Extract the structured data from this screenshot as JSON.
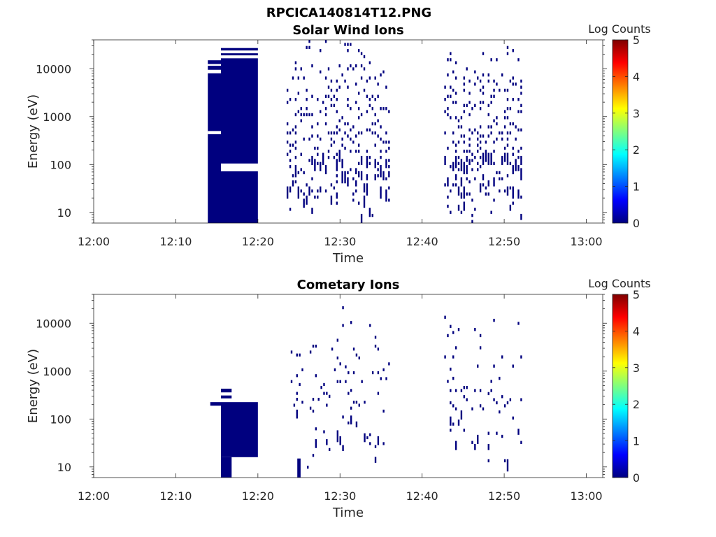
{
  "figure_title": "RPCICA140814T12.PNG",
  "colormap": [
    "#00007f",
    "#0000ff",
    "#007fff",
    "#00ffff",
    "#7fff7f",
    "#ffff00",
    "#ff7f00",
    "#ff0000",
    "#7f0000"
  ],
  "spectrogram_color": "#00007f",
  "chart_data": [
    {
      "type": "heatmap",
      "title": "Solar Wind Ions",
      "xlabel": "Time",
      "ylabel": "Energy (eV)",
      "xlim": [
        "12:00",
        "13:02"
      ],
      "ylim": [
        6,
        40000
      ],
      "yscale": "log",
      "x_ticks": [
        "12:00",
        "12:10",
        "12:20",
        "12:30",
        "12:40",
        "12:50",
        "13:00"
      ],
      "y_ticks": [
        10,
        100,
        1000,
        10000
      ],
      "colorbar": {
        "label": "Log Counts",
        "ticks": [
          0,
          1,
          2,
          3,
          4,
          5
        ],
        "range": [
          0,
          5
        ]
      },
      "blocks": [
        {
          "t0": 13.9,
          "t1": 15.5,
          "e0": 6,
          "e1": 8000
        },
        {
          "t0": 13.9,
          "t1": 15.5,
          "e0": 9500,
          "e1": 11500
        },
        {
          "t0": 13.9,
          "t1": 15.5,
          "e0": 12500,
          "e1": 15000
        },
        {
          "t0": 15.5,
          "t1": 20.0,
          "e0": 6,
          "e1": 72
        },
        {
          "t0": 15.5,
          "t1": 20.0,
          "e0": 105,
          "e1": 16500
        },
        {
          "t0": 15.5,
          "t1": 20.0,
          "e0": 19000,
          "e1": 21000
        },
        {
          "t0": 15.5,
          "t1": 20.0,
          "e0": 24000,
          "e1": 27000
        }
      ],
      "gaps": [
        {
          "t0": 13.9,
          "t1": 15.5,
          "e0": 430,
          "e1": 500
        }
      ],
      "scatter_bursts": [
        {
          "t0": 23.5,
          "t1": 36.2,
          "e_min": 6,
          "e_max": 40000,
          "seed": 11,
          "density": 0.42
        },
        {
          "t0": 42.7,
          "t1": 52.3,
          "e_min": 6,
          "e_max": 40000,
          "seed": 23,
          "density": 0.44
        }
      ]
    },
    {
      "type": "heatmap",
      "title": "Cometary Ions",
      "xlabel": "Time",
      "ylabel": "Energy (eV)",
      "xlim": [
        "12:00",
        "13:02"
      ],
      "ylim": [
        6,
        40000
      ],
      "yscale": "log",
      "x_ticks": [
        "12:00",
        "12:10",
        "12:20",
        "12:30",
        "12:40",
        "12:50",
        "13:00"
      ],
      "y_ticks": [
        10,
        100,
        1000,
        10000
      ],
      "colorbar": {
        "label": "Log Counts",
        "ticks": [
          0,
          1,
          2,
          3,
          4,
          5
        ],
        "range": [
          0,
          5
        ]
      },
      "blocks": [
        {
          "t0": 14.2,
          "t1": 15.5,
          "e0": 190,
          "e1": 225
        },
        {
          "t0": 15.5,
          "t1": 20.0,
          "e0": 16,
          "e1": 225
        },
        {
          "t0": 15.5,
          "t1": 16.8,
          "e0": 6,
          "e1": 16
        },
        {
          "t0": 15.5,
          "t1": 16.8,
          "e0": 270,
          "e1": 310
        },
        {
          "t0": 15.5,
          "t1": 16.8,
          "e0": 360,
          "e1": 430
        },
        {
          "t0": 24.8,
          "t1": 25.2,
          "e0": 6,
          "e1": 15
        }
      ],
      "gaps": [],
      "scatter_bursts": [
        {
          "t0": 24.0,
          "t1": 36.2,
          "e_min": 6,
          "e_max": 30000,
          "seed": 37,
          "density": 0.12
        },
        {
          "t0": 42.7,
          "t1": 52.3,
          "e_min": 6,
          "e_max": 40000,
          "seed": 51,
          "density": 0.13
        }
      ]
    }
  ]
}
